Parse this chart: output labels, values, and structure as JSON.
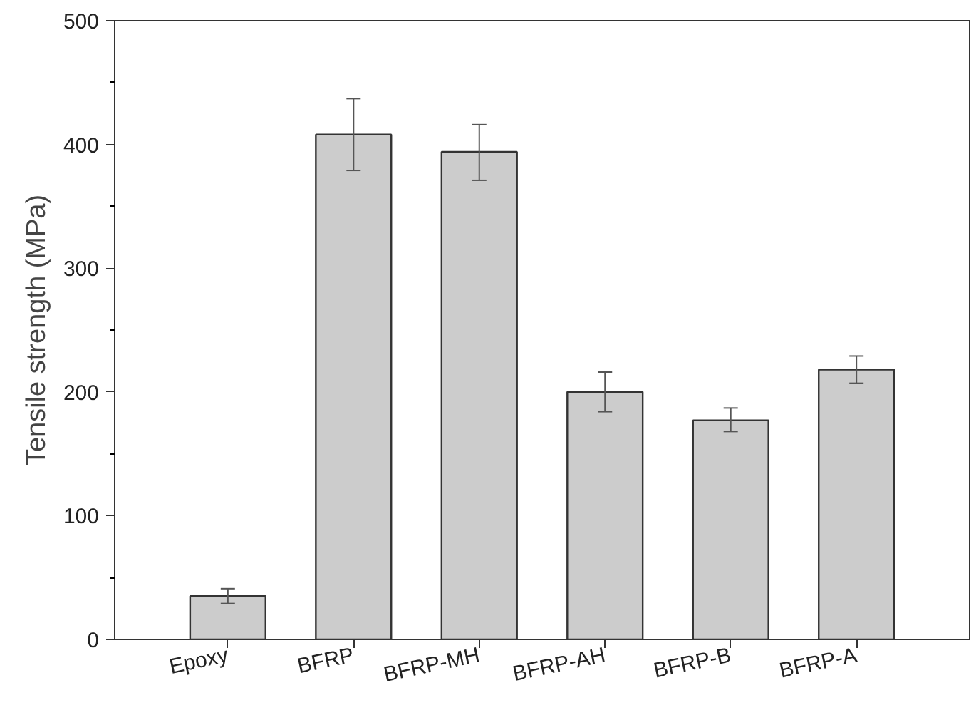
{
  "chart_data": {
    "type": "bar",
    "ylabel": "Tensile strength (MPa)",
    "categories": [
      "Epoxy",
      "BFRP",
      "BFRP-MH",
      "BFRP-AH",
      "BFRP-B",
      "BFRP-A"
    ],
    "values": [
      35,
      408,
      394,
      200,
      177,
      218
    ],
    "errors": [
      6,
      29,
      [
        371,
        416
      ],
      16,
      [
        168,
        187
      ],
      11
    ],
    "color": "#cccccc",
    "ylim": [
      0,
      500
    ],
    "yticks": [
      0,
      100,
      200,
      300,
      400,
      500
    ],
    "grid": false
  }
}
